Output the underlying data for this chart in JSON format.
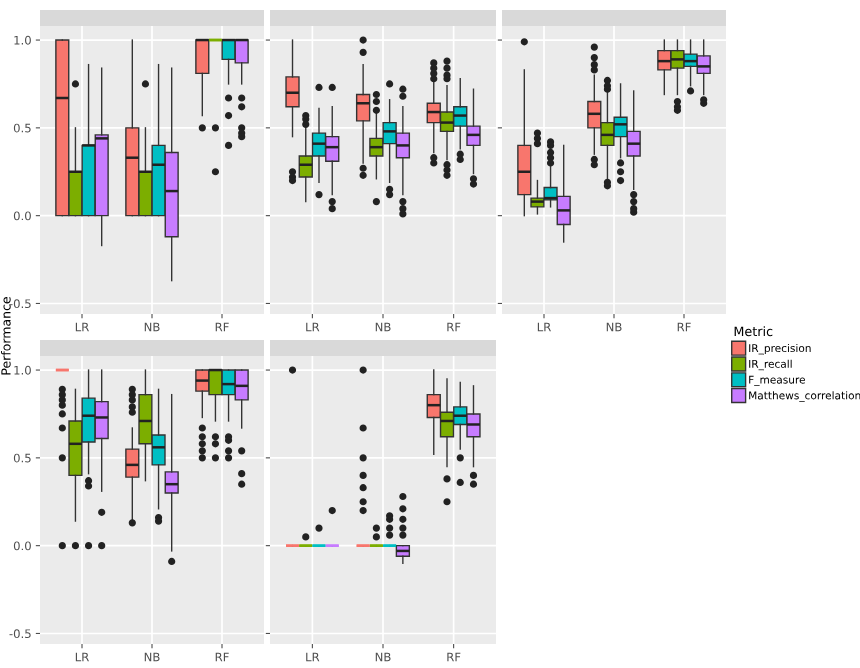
{
  "chart_data": [
    {
      "type": "box",
      "ylabel": "Performance",
      "legend": "right",
      "legend_title": "Metric",
      "categories": [
        "LR",
        "NB",
        "RF"
      ],
      "ylim": [
        -0.56,
        1.08
      ],
      "yticks": [
        {
          "value": -0.5,
          "label": "-0.5"
        },
        {
          "value": 0,
          "label": "0.0"
        },
        {
          "value": 0.5,
          "label": "0.5"
        },
        {
          "value": 1,
          "label": "1.0"
        }
      ],
      "grid": true,
      "series": [
        {
          "name": "IR_precision",
          "color": "#f8766d",
          "boxes": [
            {
              "low": 0,
              "q1": 0,
              "median": 0.67,
              "q3": 1,
              "high": 1
            },
            {
              "low": 0,
              "q1": 0,
              "median": 0.33,
              "q3": 0.5,
              "high": 1
            },
            {
              "low": 0.57,
              "q1": 0.81,
              "median": 1,
              "q3": 1,
              "high": 1,
              "outliers": [
                0.5
              ]
            }
          ]
        },
        {
          "name": "IR_recall",
          "color": "#7cae00",
          "boxes": [
            {
              "low": 0,
              "q1": 0,
              "median": 0.25,
              "q3": 0.25,
              "high": 0.5,
              "outliers": [
                0.75
              ]
            },
            {
              "low": 0,
              "q1": 0,
              "median": 0.25,
              "q3": 0.25,
              "high": 0.5,
              "outliers": [
                0.75
              ]
            },
            {
              "low": 1,
              "q1": 1,
              "median": 1,
              "q3": 1,
              "high": 1,
              "outliers": [
                0.5,
                0.25
              ]
            }
          ]
        },
        {
          "name": "F_measure",
          "color": "#00bfc4",
          "boxes": [
            {
              "low": 0,
              "q1": 0,
              "median": 0.4,
              "q3": 0.4,
              "high": 0.86
            },
            {
              "low": 0,
              "q1": 0,
              "median": 0.29,
              "q3": 0.4,
              "high": 0.86
            },
            {
              "low": 0.75,
              "q1": 0.89,
              "median": 1,
              "q3": 1,
              "high": 1,
              "outliers": [
                0.67,
                0.57,
                0.4
              ]
            }
          ]
        },
        {
          "name": "Matthews_correlation",
          "color": "#c77cff",
          "boxes": [
            {
              "low": -0.17,
              "q1": 0,
              "median": 0.44,
              "q3": 0.46,
              "high": 0.84
            },
            {
              "low": -0.37,
              "q1": -0.12,
              "median": 0.14,
              "q3": 0.36,
              "high": 0.84
            },
            {
              "low": 0.75,
              "q1": 0.87,
              "median": 1,
              "q3": 1,
              "high": 1,
              "outliers": [
                0.67,
                0.62,
                0.5,
                0.47,
                0.45
              ]
            }
          ]
        }
      ]
    },
    {
      "type": "box",
      "categories": [
        "LR",
        "NB",
        "RF"
      ],
      "ylim": [
        -0.56,
        1.08
      ],
      "yticks": [
        {
          "value": -0.5,
          "label": null
        },
        {
          "value": 0,
          "label": null
        },
        {
          "value": 0.5,
          "label": null
        },
        {
          "value": 1,
          "label": null
        }
      ],
      "grid": true,
      "tick_labels": "x",
      "series": [
        {
          "color": "#f8766d",
          "boxes": [
            {
              "low": 0.45,
              "q1": 0.62,
              "median": 0.7,
              "q3": 0.79,
              "high": 1,
              "outliers": [
                0.25,
                0.22,
                0.2
              ]
            },
            {
              "low": 0.3,
              "q1": 0.54,
              "median": 0.64,
              "q3": 0.69,
              "high": 0.86,
              "outliers": [
                1,
                0.93,
                0.27,
                0.23
              ]
            },
            {
              "low": 0.36,
              "q1": 0.53,
              "median": 0.59,
              "q3": 0.64,
              "high": 0.76,
              "outliers": [
                0.87,
                0.84,
                0.81,
                0.78,
                0.33,
                0.3
              ]
            }
          ]
        },
        {
          "color": "#7cae00",
          "boxes": [
            {
              "low": 0.08,
              "q1": 0.22,
              "median": 0.29,
              "q3": 0.34,
              "high": 0.5,
              "outliers": [
                0.57,
                0.55,
                0.52
              ]
            },
            {
              "low": 0.21,
              "q1": 0.34,
              "median": 0.39,
              "q3": 0.44,
              "high": 0.59,
              "outliers": [
                0.69,
                0.65,
                0.6,
                0.08
              ]
            },
            {
              "low": 0.32,
              "q1": 0.48,
              "median": 0.53,
              "q3": 0.59,
              "high": 0.74,
              "outliers": [
                0.88,
                0.84,
                0.8,
                0.78,
                0.29,
                0.26,
                0.23
              ]
            }
          ]
        },
        {
          "color": "#00bfc4",
          "boxes": [
            {
              "low": 0.19,
              "q1": 0.34,
              "median": 0.41,
              "q3": 0.47,
              "high": 0.61,
              "outliers": [
                0.73,
                0.12
              ]
            },
            {
              "low": 0.19,
              "q1": 0.41,
              "median": 0.48,
              "q3": 0.53,
              "high": 0.66,
              "outliers": [
                0.75,
                0.15,
                0.12
              ]
            },
            {
              "low": 0.38,
              "q1": 0.51,
              "median": 0.57,
              "q3": 0.62,
              "high": 0.78,
              "outliers": [
                0.35,
                0.32
              ]
            }
          ]
        },
        {
          "color": "#c77cff",
          "boxes": [
            {
              "low": 0.12,
              "q1": 0.31,
              "median": 0.39,
              "q3": 0.45,
              "high": 0.62,
              "outliers": [
                0.73,
                0.08,
                0.04
              ]
            },
            {
              "low": 0.12,
              "q1": 0.33,
              "median": 0.4,
              "q3": 0.47,
              "high": 0.62,
              "outliers": [
                0.72,
                0.68,
                0.08,
                0.04,
                0.01
              ]
            },
            {
              "low": 0.24,
              "q1": 0.4,
              "median": 0.46,
              "q3": 0.51,
              "high": 0.72,
              "outliers": [
                0.21,
                0.18
              ]
            }
          ]
        }
      ]
    },
    {
      "type": "box",
      "categories": [
        "LR",
        "NB",
        "RF"
      ],
      "ylim": [
        -0.56,
        1.08
      ],
      "yticks": [
        {
          "value": -0.5,
          "label": null
        },
        {
          "value": 0,
          "label": null
        },
        {
          "value": 0.5,
          "label": null
        },
        {
          "value": 1,
          "label": null
        }
      ],
      "grid": true,
      "tick_labels": "x",
      "series": [
        {
          "color": "#f8766d",
          "boxes": [
            {
              "low": 0.0,
              "q1": 0.12,
              "median": 0.25,
              "q3": 0.4,
              "high": 0.83,
              "outliers": [
                0.99
              ]
            },
            {
              "low": 0.35,
              "q1": 0.5,
              "median": 0.58,
              "q3": 0.65,
              "high": 0.8,
              "outliers": [
                0.96,
                0.9,
                0.86,
                0.83,
                0.32,
                0.29
              ]
            },
            {
              "low": 0.69,
              "q1": 0.83,
              "median": 0.88,
              "q3": 0.94,
              "high": 1
            }
          ]
        },
        {
          "color": "#7cae00",
          "boxes": [
            {
              "low": 0.01,
              "q1": 0.05,
              "median": 0.08,
              "q3": 0.1,
              "high": 0.2,
              "outliers": [
                0.47,
                0.44,
                0.41
              ]
            },
            {
              "low": 0.21,
              "q1": 0.4,
              "median": 0.46,
              "q3": 0.53,
              "high": 0.7,
              "outliers": [
                0.77,
                0.74,
                0.72,
                0.19,
                0.17
              ]
            },
            {
              "low": 0.69,
              "q1": 0.84,
              "median": 0.89,
              "q3": 0.94,
              "high": 1,
              "outliers": [
                0.65,
                0.62,
                0.6
              ]
            }
          ]
        },
        {
          "color": "#00bfc4",
          "boxes": [
            {
              "low": 0.05,
              "q1": 0.09,
              "median": 0.1,
              "q3": 0.16,
              "high": 0.28,
              "outliers": [
                0.42,
                0.4,
                0.36,
                0.33,
                0.3
              ]
            },
            {
              "low": 0.33,
              "q1": 0.45,
              "median": 0.52,
              "q3": 0.56,
              "high": 0.75,
              "outliers": [
                0.3,
                0.25,
                0.2
              ]
            },
            {
              "low": 0.74,
              "q1": 0.85,
              "median": 0.88,
              "q3": 0.92,
              "high": 1,
              "outliers": [
                0.71
              ]
            }
          ]
        },
        {
          "color": "#c77cff",
          "boxes": [
            {
              "low": -0.15,
              "q1": -0.05,
              "median": 0.03,
              "q3": 0.11,
              "high": 0.4
            },
            {
              "low": 0.15,
              "q1": 0.34,
              "median": 0.41,
              "q3": 0.48,
              "high": 0.71,
              "outliers": [
                0.12,
                0.08,
                0.04,
                0.02
              ]
            },
            {
              "low": 0.69,
              "q1": 0.81,
              "median": 0.85,
              "q3": 0.91,
              "high": 1,
              "outliers": [
                0.66,
                0.64
              ]
            }
          ]
        }
      ]
    },
    {
      "type": "box",
      "categories": [
        "LR",
        "NB",
        "RF"
      ],
      "ylim": [
        -0.56,
        1.08
      ],
      "yticks": [
        {
          "value": -0.5,
          "label": "-0.5"
        },
        {
          "value": 0,
          "label": "0.0"
        },
        {
          "value": 0.5,
          "label": "0.5"
        },
        {
          "value": 1,
          "label": "1.0"
        }
      ],
      "grid": true,
      "series": [
        {
          "color": "#f8766d",
          "boxes": [
            {
              "low": 1,
              "q1": 1,
              "median": 1,
              "q3": 1,
              "high": 1,
              "outliers": [
                0.89,
                0.86,
                0.83,
                0.8,
                0.75,
                0.67,
                0.5,
                0
              ]
            },
            {
              "low": 0.14,
              "q1": 0.39,
              "median": 0.46,
              "q3": 0.55,
              "high": 0.67,
              "outliers": [
                0.89,
                0.86,
                0.83,
                0.79,
                0.76,
                0.13
              ]
            },
            {
              "low": 0.73,
              "q1": 0.88,
              "median": 0.94,
              "q3": 1,
              "high": 1,
              "outliers": [
                0.67,
                0.62,
                0.58,
                0.54,
                0.5
              ]
            }
          ]
        },
        {
          "color": "#7cae00",
          "boxes": [
            {
              "low": 0.14,
              "q1": 0.4,
              "median": 0.58,
              "q3": 0.71,
              "high": 0.89,
              "outliers": [
                0
              ]
            },
            {
              "low": 0.37,
              "q1": 0.58,
              "median": 0.71,
              "q3": 0.86,
              "high": 1
            },
            {
              "low": 0.71,
              "q1": 0.86,
              "median": 1,
              "q3": 1,
              "high": 1,
              "outliers": [
                0.62,
                0.58,
                0.5
              ]
            }
          ]
        },
        {
          "color": "#00bfc4",
          "boxes": [
            {
              "low": 0.41,
              "q1": 0.59,
              "median": 0.74,
              "q3": 0.84,
              "high": 1,
              "outliers": [
                0.37,
                0.34,
                0
              ]
            },
            {
              "low": 0.21,
              "q1": 0.46,
              "median": 0.56,
              "q3": 0.63,
              "high": 0.89,
              "outliers": [
                0.16,
                0.14
              ]
            },
            {
              "low": 0.71,
              "q1": 0.86,
              "median": 0.92,
              "q3": 1,
              "high": 1,
              "outliers": [
                0.62,
                0.6,
                0.54,
                0.5
              ]
            }
          ]
        },
        {
          "color": "#c77cff",
          "boxes": [
            {
              "low": 0.31,
              "q1": 0.61,
              "median": 0.73,
              "q3": 0.82,
              "high": 1,
              "outliers": [
                0.19,
                0
              ]
            },
            {
              "low": -0.03,
              "q1": 0.3,
              "median": 0.35,
              "q3": 0.42,
              "high": 0.86,
              "outliers": [
                -0.09
              ]
            },
            {
              "low": 0.67,
              "q1": 0.83,
              "median": 0.91,
              "q3": 1,
              "high": 1,
              "outliers": [
                0.54,
                0.41,
                0.35
              ]
            }
          ]
        }
      ]
    },
    {
      "type": "box",
      "categories": [
        "LR",
        "NB",
        "RF"
      ],
      "ylim": [
        -0.56,
        1.08
      ],
      "yticks": [
        {
          "value": -0.5,
          "label": null
        },
        {
          "value": 0,
          "label": null
        },
        {
          "value": 0.5,
          "label": null
        },
        {
          "value": 1,
          "label": null
        }
      ],
      "grid": true,
      "tick_labels": "x",
      "series": [
        {
          "color": "#f8766d",
          "boxes": [
            {
              "low": 0,
              "q1": 0,
              "median": 0,
              "q3": 0,
              "high": 0,
              "outliers": [
                1
              ]
            },
            {
              "low": 0,
              "q1": 0,
              "median": 0,
              "q3": 0,
              "high": 0,
              "outliers": [
                1,
                0.67,
                0.5,
                0.4,
                0.33,
                0.25,
                0.2
              ]
            },
            {
              "low": 0.52,
              "q1": 0.73,
              "median": 0.8,
              "q3": 0.86,
              "high": 1
            }
          ]
        },
        {
          "color": "#7cae00",
          "boxes": [
            {
              "low": 0,
              "q1": 0,
              "median": 0,
              "q3": 0,
              "high": 0,
              "outliers": [
                0.05
              ]
            },
            {
              "low": 0,
              "q1": 0,
              "median": 0,
              "q3": 0,
              "high": 0,
              "outliers": [
                0.1,
                0.05
              ]
            },
            {
              "low": 0.45,
              "q1": 0.62,
              "median": 0.71,
              "q3": 0.76,
              "high": 0.95,
              "outliers": [
                0.38,
                0.25
              ]
            }
          ]
        },
        {
          "color": "#00bfc4",
          "boxes": [
            {
              "low": 0,
              "q1": 0,
              "median": 0,
              "q3": 0,
              "high": 0,
              "outliers": [
                0.1
              ]
            },
            {
              "low": 0,
              "q1": 0,
              "median": 0,
              "q3": 0,
              "high": 0,
              "outliers": [
                0.17,
                0.15,
                0.1,
                0.06
              ]
            },
            {
              "low": 0.55,
              "q1": 0.69,
              "median": 0.74,
              "q3": 0.79,
              "high": 0.93,
              "outliers": [
                0.5,
                0.36
              ]
            }
          ]
        },
        {
          "color": "#c77cff",
          "boxes": [
            {
              "low": 0,
              "q1": 0,
              "median": 0,
              "q3": 0,
              "high": 0,
              "outliers": [
                0.2
              ]
            },
            {
              "low": -0.1,
              "q1": -0.06,
              "median": -0.03,
              "q3": 0,
              "high": 0,
              "outliers": [
                0.28,
                0.21,
                0.15,
                0.1,
                0.06
              ]
            },
            {
              "low": 0.45,
              "q1": 0.62,
              "median": 0.69,
              "q3": 0.75,
              "high": 0.91,
              "outliers": [
                0.4,
                0.35
              ]
            }
          ]
        }
      ]
    }
  ]
}
